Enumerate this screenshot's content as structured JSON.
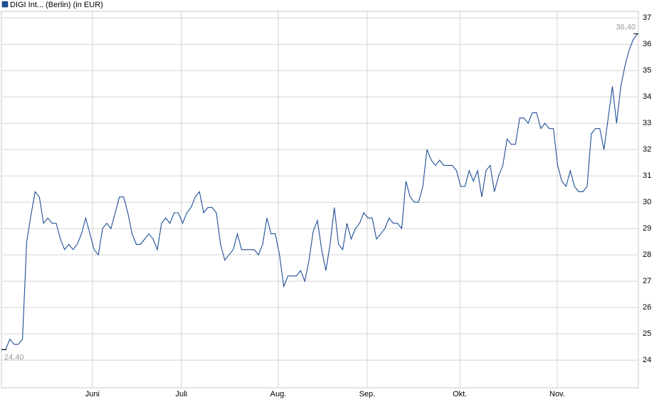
{
  "chart_data": {
    "type": "line",
    "series": [
      {
        "name": "DIGI Int... (Berlin) (in EUR)",
        "color": "#1f4e96",
        "values": [
          24.4,
          24.4,
          24.8,
          24.6,
          24.6,
          24.8,
          28.5,
          29.5,
          30.4,
          30.2,
          29.2,
          29.4,
          29.2,
          29.2,
          28.6,
          28.2,
          28.4,
          28.2,
          28.4,
          28.8,
          29.4,
          28.8,
          28.2,
          28.0,
          29.0,
          29.2,
          29.0,
          29.6,
          30.2,
          30.2,
          29.6,
          28.8,
          28.4,
          28.4,
          28.6,
          28.8,
          28.6,
          28.2,
          29.2,
          29.4,
          29.2,
          29.6,
          29.6,
          29.2,
          29.6,
          29.8,
          30.2,
          30.4,
          29.6,
          29.8,
          29.8,
          29.6,
          28.4,
          27.8,
          28.0,
          28.2,
          28.8,
          28.2,
          28.2,
          28.2,
          28.2,
          28.0,
          28.4,
          29.4,
          28.8,
          28.8,
          28.0,
          26.8,
          27.2,
          27.2,
          27.2,
          27.4,
          27.0,
          27.8,
          28.9,
          29.3,
          28.2,
          27.4,
          28.4,
          29.8,
          28.4,
          28.2,
          29.2,
          28.6,
          29.0,
          29.2,
          29.6,
          29.4,
          29.4,
          28.6,
          28.8,
          29.0,
          29.4,
          29.2,
          29.2,
          29.0,
          30.8,
          30.2,
          30.0,
          30.0,
          30.6,
          32.0,
          31.6,
          31.4,
          31.6,
          31.4,
          31.4,
          31.4,
          31.2,
          30.6,
          30.6,
          31.2,
          30.8,
          31.2,
          30.2,
          31.2,
          31.4,
          30.4,
          31.0,
          31.4,
          32.4,
          32.2,
          32.2,
          33.2,
          33.2,
          33.0,
          33.4,
          33.4,
          32.8,
          33.0,
          32.8,
          32.8,
          31.4,
          30.8,
          30.6,
          31.2,
          30.6,
          30.4,
          30.4,
          30.6,
          32.6,
          32.8,
          32.8,
          32.0,
          33.2,
          34.4,
          33.0,
          34.4,
          35.2,
          35.8,
          36.2,
          36.4
        ]
      }
    ],
    "first_label": "24,40",
    "last_label": "36,40",
    "xlim": [
      0,
      151
    ],
    "xticks": [
      {
        "value": 21.6,
        "label": "Juni"
      },
      {
        "value": 42.7,
        "label": "Juli"
      },
      {
        "value": 65.7,
        "label": "Aug."
      },
      {
        "value": 86.8,
        "label": "Sep."
      },
      {
        "value": 108.8,
        "label": "Okt."
      },
      {
        "value": 131.9,
        "label": "Nov."
      }
    ],
    "ylim": [
      22.95,
      37.25
    ],
    "yticks": [
      24,
      25,
      26,
      27,
      28,
      29,
      30,
      31,
      32,
      33,
      34,
      35,
      36,
      37
    ],
    "grid": true
  }
}
